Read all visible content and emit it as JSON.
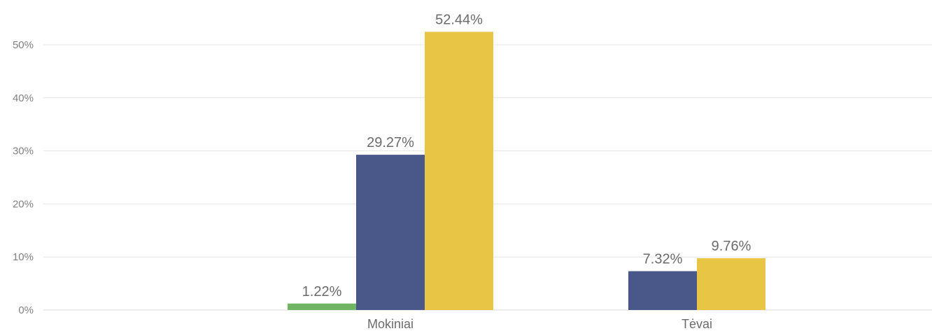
{
  "chart_data": {
    "type": "bar",
    "categories": [
      "Mokiniai",
      "Tėvai"
    ],
    "series": [
      {
        "values": [
          1.22,
          null
        ],
        "labels": [
          "1.22%",
          ""
        ],
        "color": "#70b562"
      },
      {
        "values": [
          29.27,
          7.32
        ],
        "labels": [
          "29.27%",
          "7.32%"
        ],
        "color": "#4a5889"
      },
      {
        "values": [
          52.44,
          9.76
        ],
        "labels": [
          "52.44%",
          "9.76%"
        ],
        "color": "#e9c545"
      }
    ],
    "y_ticks": [
      {
        "value": 0,
        "label": "0%"
      },
      {
        "value": 10,
        "label": "10%"
      },
      {
        "value": 20,
        "label": "20%"
      },
      {
        "value": 30,
        "label": "30%"
      },
      {
        "value": 40,
        "label": "40%"
      },
      {
        "value": 50,
        "label": "50%"
      }
    ],
    "ylim": [
      0,
      55
    ],
    "grid": true,
    "legend": "none"
  }
}
